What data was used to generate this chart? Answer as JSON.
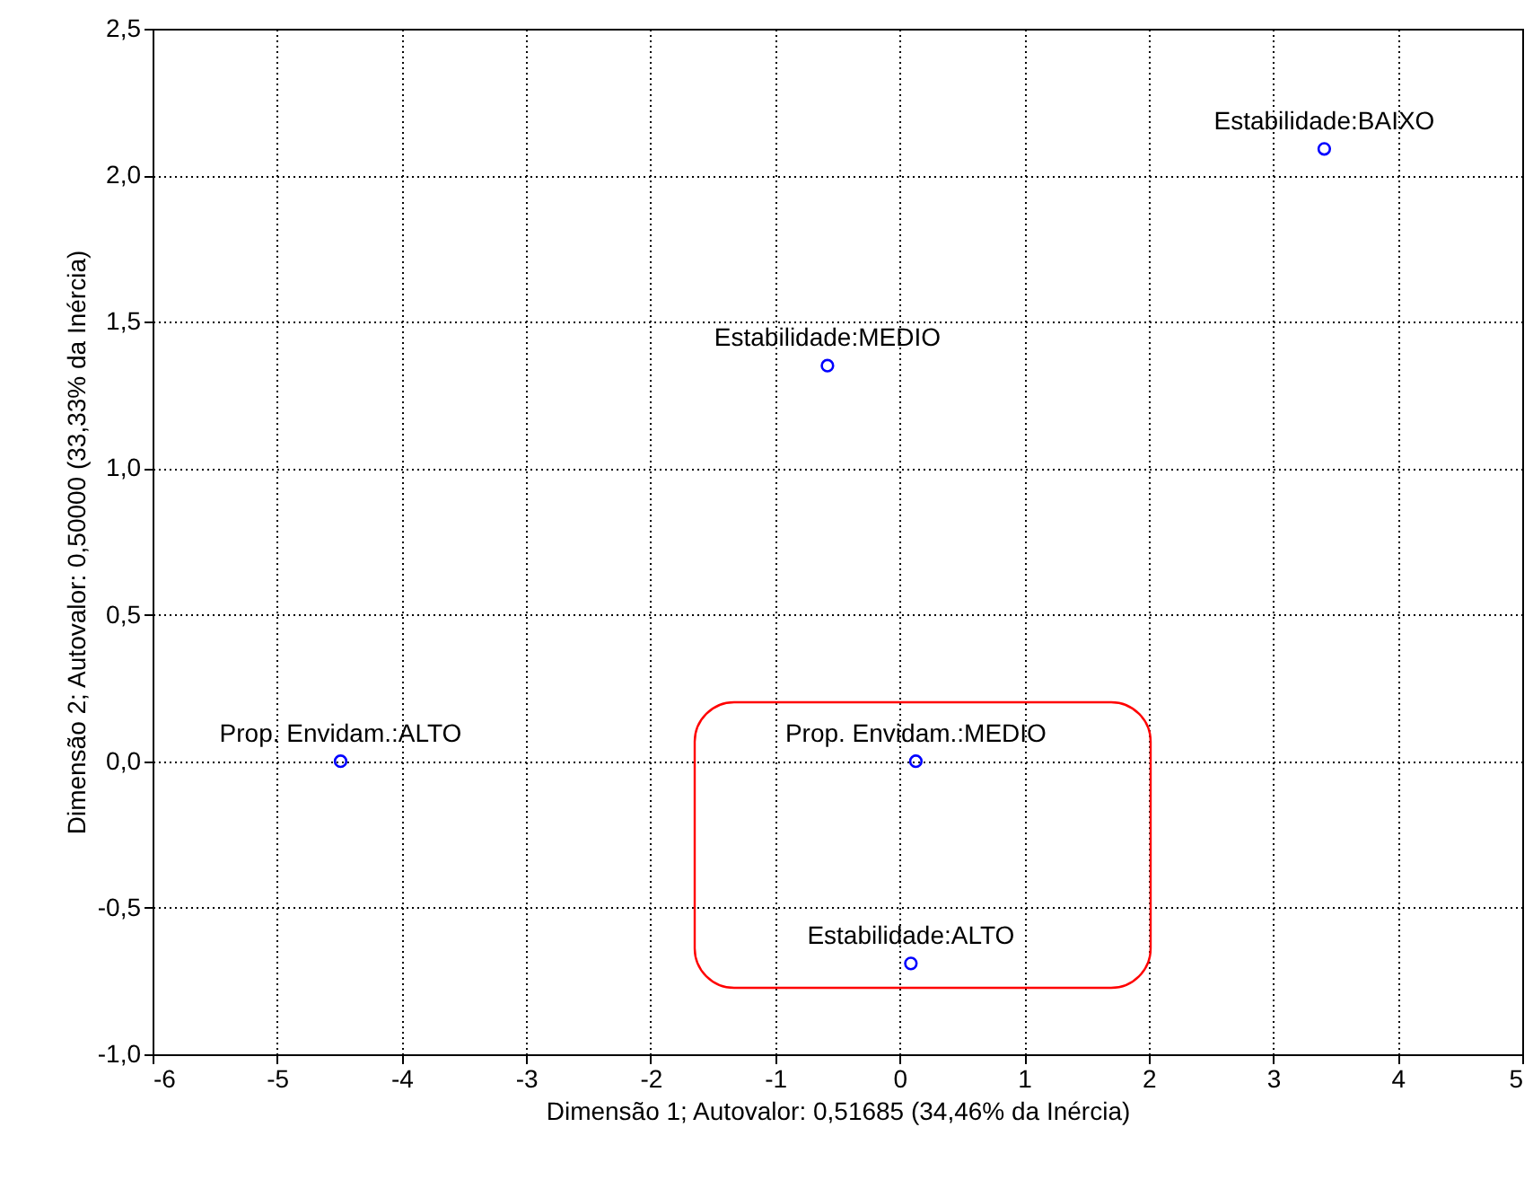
{
  "chart_data": {
    "type": "scatter",
    "xlabel": "Dimensão 1; Autovalor: 0,51685 (34,46% da Inércia)",
    "ylabel": "Dimensão 2; Autovalor: 0,50000 (33,33% da Inércia)",
    "x": [
      3.41,
      -0.58,
      -4.49,
      0.13,
      0.09
    ],
    "series": [
      {
        "color": "#0000ff",
        "values": [
          2.09,
          1.35,
          0.0,
          0.0,
          -0.69
        ]
      }
    ],
    "annotations": [
      {
        "text": "Estabilidade:BAIXO",
        "x": 3.41,
        "y": 2.09
      },
      {
        "text": "Estabilidade:MEDIO",
        "x": -0.58,
        "y": 1.35
      },
      {
        "text": "Prop. Envidam.:ALTO",
        "x": -4.49,
        "y": 0.0
      },
      {
        "text": "Prop. Envidam.:MEDIO",
        "x": 0.13,
        "y": 0.0
      },
      {
        "text": "Estabilidade:ALTO",
        "x": 0.09,
        "y": -0.69
      }
    ],
    "xlim": [
      -6,
      5
    ],
    "xticks": [
      -6,
      -5,
      -4,
      -3,
      -2,
      -1,
      0,
      1,
      2,
      3,
      4,
      5
    ],
    "ylim": [
      -1.0,
      2.5
    ],
    "yticks": [
      {
        "value": -1.0,
        "label": "-1,0"
      },
      {
        "value": -0.5,
        "label": "-0,5"
      },
      {
        "value": 0.0,
        "label": "0,0"
      },
      {
        "value": 0.5,
        "label": "0,5"
      },
      {
        "value": 1.0,
        "label": "1,0"
      },
      {
        "value": 1.5,
        "label": "1,5"
      },
      {
        "value": 2.0,
        "label": "2,0"
      },
      {
        "value": 2.5,
        "label": "2,5"
      }
    ],
    "grid": true,
    "marker": "circle"
  }
}
